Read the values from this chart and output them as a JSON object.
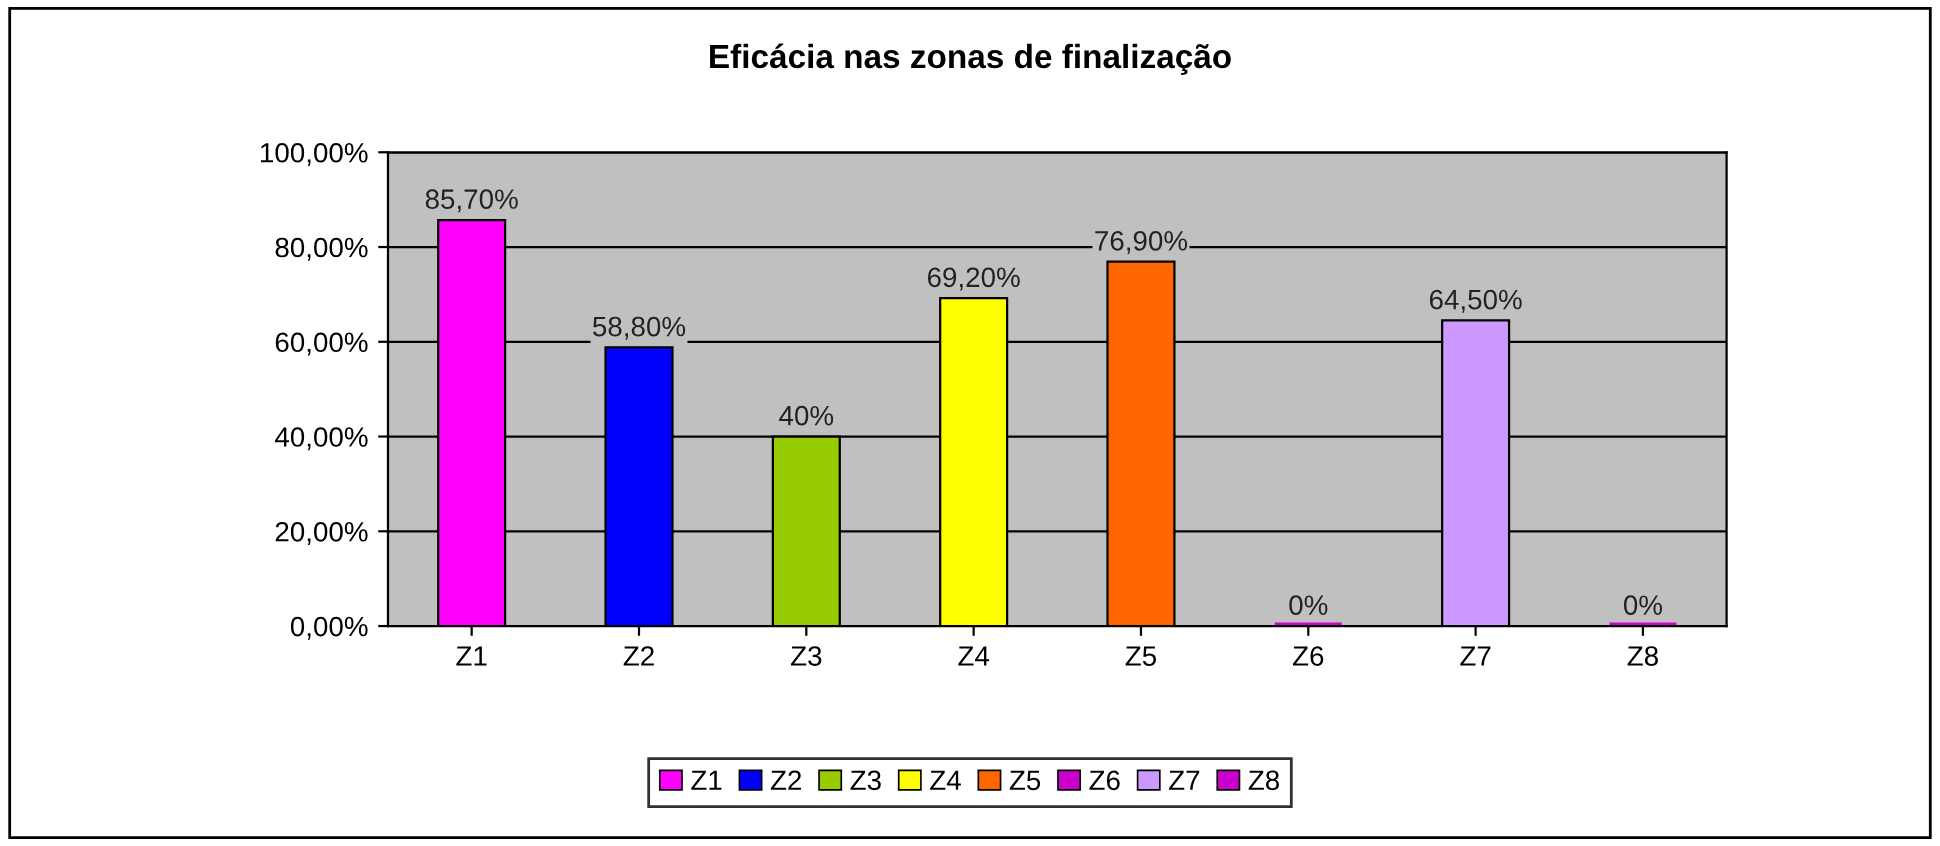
{
  "chart_data": {
    "type": "bar",
    "title": "Eficácia nas zonas de finalização",
    "categories": [
      "Z1",
      "Z2",
      "Z3",
      "Z4",
      "Z5",
      "Z6",
      "Z7",
      "Z8"
    ],
    "series": [
      {
        "name": "Z1",
        "color": "#ff00ff",
        "values": [
          85.7,
          null,
          null,
          null,
          null,
          null,
          null,
          null
        ],
        "value_labels": [
          "85,70%",
          null,
          null,
          null,
          null,
          null,
          null,
          null
        ]
      },
      {
        "name": "Z2",
        "color": "#0000ff",
        "values": [
          null,
          58.8,
          null,
          null,
          null,
          null,
          null,
          null
        ],
        "value_labels": [
          null,
          "58,80%",
          null,
          null,
          null,
          null,
          null,
          null
        ]
      },
      {
        "name": "Z3",
        "color": "#99cc00",
        "values": [
          null,
          null,
          40,
          null,
          null,
          null,
          null,
          null
        ],
        "value_labels": [
          null,
          null,
          "40%",
          null,
          null,
          null,
          null,
          null
        ]
      },
      {
        "name": "Z4",
        "color": "#ffff00",
        "values": [
          null,
          null,
          null,
          69.2,
          null,
          null,
          null,
          null
        ],
        "value_labels": [
          null,
          null,
          null,
          "69,20%",
          null,
          null,
          null,
          null
        ]
      },
      {
        "name": "Z5",
        "color": "#ff6600",
        "values": [
          null,
          null,
          null,
          null,
          76.9,
          null,
          null,
          null
        ],
        "value_labels": [
          null,
          null,
          null,
          null,
          "76,90%",
          null,
          null,
          null
        ]
      },
      {
        "name": "Z6",
        "color": "#cc00cc",
        "values": [
          null,
          null,
          null,
          null,
          null,
          0,
          null,
          null
        ],
        "value_labels": [
          null,
          null,
          null,
          null,
          null,
          "0%",
          null,
          null
        ]
      },
      {
        "name": "Z7",
        "color": "#cc99ff",
        "values": [
          null,
          null,
          null,
          null,
          null,
          null,
          64.5,
          null
        ],
        "value_labels": [
          null,
          null,
          null,
          null,
          null,
          null,
          "64,50%",
          null
        ]
      },
      {
        "name": "Z8",
        "color": "#cc00cc",
        "values": [
          null,
          null,
          null,
          null,
          null,
          null,
          null,
          0
        ],
        "value_labels": [
          null,
          null,
          null,
          null,
          null,
          null,
          null,
          "0%"
        ]
      }
    ],
    "ylim": [
      0,
      100
    ],
    "yticks": [
      {
        "value": 0,
        "label": "0,00%"
      },
      {
        "value": 20,
        "label": "20,00%"
      },
      {
        "value": 40,
        "label": "40,00%"
      },
      {
        "value": 60,
        "label": "60,00%"
      },
      {
        "value": 80,
        "label": "80,00%"
      },
      {
        "value": 100,
        "label": "100,00%"
      }
    ],
    "grid": "y",
    "legend": "bottom"
  }
}
